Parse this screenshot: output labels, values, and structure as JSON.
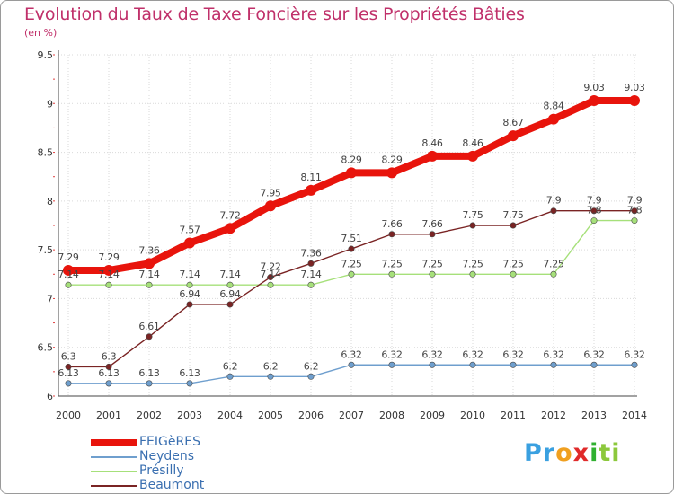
{
  "chart_data": {
    "type": "line",
    "title": "Evolution du Taux de Taxe Foncière sur les Propriétés Bâties",
    "subtitle": "(en %)",
    "categories": [
      "2000",
      "2001",
      "2002",
      "2003",
      "2004",
      "2005",
      "2006",
      "2007",
      "2008",
      "2009",
      "2010",
      "2011",
      "2012",
      "2013",
      "2014"
    ],
    "ylim": [
      6,
      9.5
    ],
    "yticks": [
      "6",
      "6.5",
      "7",
      "7.5",
      "8",
      "8.5",
      "9",
      "9.5"
    ],
    "grid": true,
    "legend_position": "bottom-left",
    "series": [
      {
        "name": "FEIGèRES",
        "color": "#e8140c",
        "labels": [
          "7.29",
          "7.29",
          "7.36",
          "7.57",
          "7.72",
          "7.95",
          "8.11",
          "8.29",
          "8.29",
          "8.46",
          "8.46",
          "8.67",
          "8.84",
          "9.03",
          "9.03"
        ],
        "values": [
          7.29,
          7.29,
          7.36,
          7.57,
          7.72,
          7.95,
          8.11,
          8.29,
          8.29,
          8.46,
          8.46,
          8.67,
          8.84,
          9.03,
          9.03
        ]
      },
      {
        "name": "Neydens",
        "color": "#6f9fce",
        "labels": [
          "6.13",
          "6.13",
          "6.13",
          "6.13",
          "6.2",
          "6.2",
          "6.2",
          "6.32",
          "6.32",
          "6.32",
          "6.32",
          "6.32",
          "6.32",
          "6.32",
          "6.32"
        ],
        "values": [
          6.13,
          6.13,
          6.13,
          6.13,
          6.2,
          6.2,
          6.2,
          6.32,
          6.32,
          6.32,
          6.32,
          6.32,
          6.32,
          6.32,
          6.32
        ]
      },
      {
        "name": "Présilly",
        "color": "#a6e07a",
        "labels": [
          "7.14",
          "7.14",
          "7.14",
          "7.14",
          "7.14",
          "7.14",
          "7.14",
          "7.25",
          "7.25",
          "7.25",
          "7.25",
          "7.25",
          "7.25",
          "7.8",
          "7.8"
        ],
        "values": [
          7.14,
          7.14,
          7.14,
          7.14,
          7.14,
          7.14,
          7.14,
          7.25,
          7.25,
          7.25,
          7.25,
          7.25,
          7.25,
          7.8,
          7.8
        ]
      },
      {
        "name": "Beaumont",
        "color": "#7a2424",
        "labels": [
          "6.3",
          "6.3",
          "6.61",
          "6.94",
          "6.94",
          "7.22",
          "7.36",
          "7.51",
          "7.66",
          "7.66",
          "7.75",
          "7.75",
          "7.9",
          "7.9",
          "7.9"
        ],
        "values": [
          6.3,
          6.3,
          6.61,
          6.94,
          6.94,
          7.22,
          7.36,
          7.51,
          7.66,
          7.66,
          7.75,
          7.75,
          7.9,
          7.9,
          7.9
        ]
      }
    ]
  },
  "logo": {
    "parts": [
      "Pr",
      "o",
      "x",
      "i",
      "ti"
    ],
    "colors": [
      "#3aa0e0",
      "#f0a020",
      "#e02a2a",
      "#30b030",
      "#8cc83c"
    ]
  }
}
